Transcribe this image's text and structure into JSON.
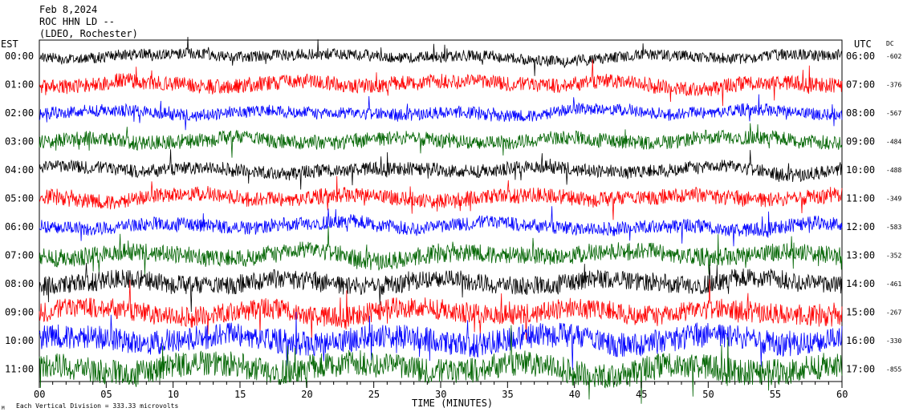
{
  "header": {
    "date": "Feb 8,2024",
    "station": "ROC HHN LD --",
    "network": "(LDEO, Rochester)"
  },
  "labels": {
    "left_tz": "EST",
    "right_tz": "UTC",
    "dc": "DC",
    "xlabel": "TIME (MINUTES)",
    "footer": "Each Vertical Division =  333.33 microvolts",
    "corner_mark": "M"
  },
  "colors": {
    "cycle": [
      "#000000",
      "#ff0000",
      "#0000ff",
      "#006400"
    ]
  },
  "chart_data": {
    "type": "line",
    "title": "",
    "xlabel": "TIME (MINUTES)",
    "ylabel": "",
    "xlim": [
      0,
      60
    ],
    "x_ticks": [
      "00",
      "05",
      "10",
      "15",
      "20",
      "25",
      "30",
      "35",
      "40",
      "45",
      "50",
      "55",
      "60"
    ],
    "series": [
      {
        "est": "00:00",
        "utc": "06:00",
        "dc": "-602",
        "amplitude": 0.38
      },
      {
        "est": "01:00",
        "utc": "07:00",
        "dc": "-376",
        "amplitude": 0.52
      },
      {
        "est": "02:00",
        "utc": "08:00",
        "dc": "-567",
        "amplitude": 0.42
      },
      {
        "est": "03:00",
        "utc": "09:00",
        "dc": "-484",
        "amplitude": 0.5
      },
      {
        "est": "04:00",
        "utc": "10:00",
        "dc": "-488",
        "amplitude": 0.46
      },
      {
        "est": "05:00",
        "utc": "11:00",
        "dc": "-349",
        "amplitude": 0.52
      },
      {
        "est": "06:00",
        "utc": "12:00",
        "dc": "-583",
        "amplitude": 0.48
      },
      {
        "est": "07:00",
        "utc": "13:00",
        "dc": "-352",
        "amplitude": 0.62
      },
      {
        "est": "08:00",
        "utc": "14:00",
        "dc": "-461",
        "amplitude": 0.66
      },
      {
        "est": "09:00",
        "utc": "15:00",
        "dc": "-267",
        "amplitude": 0.72
      },
      {
        "est": "10:00",
        "utc": "16:00",
        "dc": "-330",
        "amplitude": 0.85
      },
      {
        "est": "11:00",
        "utc": "17:00",
        "dc": "-855",
        "amplitude": 0.9
      }
    ]
  }
}
